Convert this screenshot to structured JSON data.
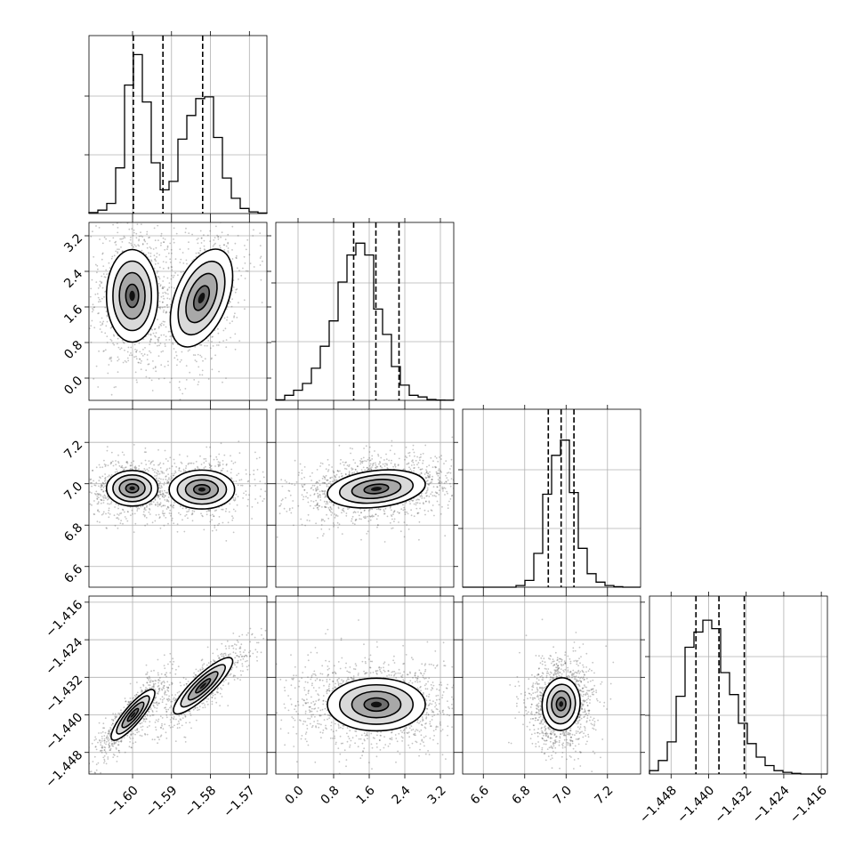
{
  "chart_data": {
    "type": "corner",
    "grid": true,
    "parameters": [
      {
        "range": [
          -1.6112,
          -1.5655
        ],
        "ticks": [
          -1.6,
          -1.59,
          -1.58,
          -1.57
        ],
        "tick_labels": [
          "−1.60",
          "−1.59",
          "−1.58",
          "−1.57"
        ],
        "quantiles": [
          -1.5998,
          -1.5922,
          -1.582
        ],
        "hist": [
          0.006,
          0.02,
          0.06,
          0.27,
          0.76,
          0.94,
          0.66,
          0.3,
          0.14,
          0.19,
          0.44,
          0.58,
          0.68,
          0.69,
          0.45,
          0.21,
          0.09,
          0.03,
          0.01,
          0.003
        ]
      },
      {
        "range": [
          -0.5,
          3.5
        ],
        "ticks": [
          0.0,
          0.8,
          1.6,
          2.4,
          3.2
        ],
        "tick_labels": [
          "0.0",
          "0.8",
          "1.6",
          "2.4",
          "3.2"
        ],
        "quantiles": [
          1.25,
          1.75,
          2.27
        ],
        "hist": [
          0.003,
          0.03,
          0.06,
          0.1,
          0.19,
          0.32,
          0.47,
          0.7,
          0.86,
          0.93,
          0.86,
          0.54,
          0.39,
          0.2,
          0.09,
          0.03,
          0.02,
          0.005,
          0.002,
          0.001
        ]
      },
      {
        "range": [
          6.5,
          7.36
        ],
        "ticks": [
          6.6,
          6.8,
          7.0,
          7.2
        ],
        "tick_labels": [
          "6.6",
          "6.8",
          "7.0",
          "7.2"
        ],
        "quantiles": [
          6.914,
          6.976,
          7.038
        ],
        "hist": [
          0.0,
          0.0,
          0.0,
          0.0,
          0.0,
          0.0,
          0.01,
          0.04,
          0.2,
          0.55,
          0.78,
          0.87,
          0.56,
          0.23,
          0.08,
          0.03,
          0.01,
          0.003,
          0.0,
          0.0
        ]
      },
      {
        "range": [
          -1.4526,
          -1.4147
        ],
        "ticks": [
          -1.448,
          -1.44,
          -1.432,
          -1.424,
          -1.416
        ],
        "tick_labels": [
          "−1.448",
          "−1.440",
          "−1.432",
          "−1.424",
          "−1.416"
        ],
        "quantiles": [
          -1.4427,
          -1.4378,
          -1.4324
        ],
        "hist": [
          0.02,
          0.08,
          0.19,
          0.46,
          0.75,
          0.84,
          0.91,
          0.86,
          0.6,
          0.47,
          0.3,
          0.18,
          0.1,
          0.05,
          0.02,
          0.01,
          0.004,
          0.0,
          0.0,
          0.0
        ]
      }
    ],
    "pairs": [
      {
        "x_param": 0,
        "y_param": 1,
        "clusters": [
          {
            "center": [
              -1.6001,
              1.85
            ],
            "sx": 0.0033,
            "sy": 0.52,
            "rho": 0.0,
            "weight": 0.55
          },
          {
            "center": [
              -1.5823,
              1.8
            ],
            "sx": 0.004,
            "sy": 0.55,
            "rho": 0.45,
            "weight": 0.45
          }
        ]
      },
      {
        "x_param": 0,
        "y_param": 2,
        "clusters": [
          {
            "center": [
              -1.6001,
              6.978
            ],
            "sx": 0.0033,
            "sy": 0.043,
            "rho": 0.0,
            "weight": 0.55
          },
          {
            "center": [
              -1.5822,
              6.972
            ],
            "sx": 0.0042,
            "sy": 0.047,
            "rho": 0.0,
            "weight": 0.45
          }
        ]
      },
      {
        "x_param": 1,
        "y_param": 2,
        "clusters": [
          {
            "center": [
              1.76,
              6.975
            ],
            "sx": 0.55,
            "sy": 0.046,
            "rho": 0.25,
            "weight": 1.0
          }
        ]
      },
      {
        "x_param": 0,
        "y_param": 3,
        "clusters": [
          {
            "center": [
              -1.5999,
              -1.44
            ],
            "sx": 0.0028,
            "sy": 0.0027,
            "rho": 0.86,
            "weight": 0.55
          },
          {
            "center": [
              -1.5819,
              -1.4338
            ],
            "sx": 0.0038,
            "sy": 0.003,
            "rho": 0.87,
            "weight": 0.45
          }
        ]
      },
      {
        "x_param": 1,
        "y_param": 3,
        "clusters": [
          {
            "center": [
              1.76,
              -1.4378
            ],
            "sx": 0.55,
            "sy": 0.0028,
            "rho": 0.0,
            "weight": 1.0
          }
        ]
      },
      {
        "x_param": 2,
        "y_param": 3,
        "clusters": [
          {
            "center": [
              6.976,
              -1.4377
            ],
            "sx": 0.046,
            "sy": 0.0028,
            "rho": 0.05,
            "weight": 1.0
          }
        ]
      }
    ],
    "contour_levels_sigma": [
      0.5,
      1.0,
      1.5,
      2.0
    ]
  }
}
